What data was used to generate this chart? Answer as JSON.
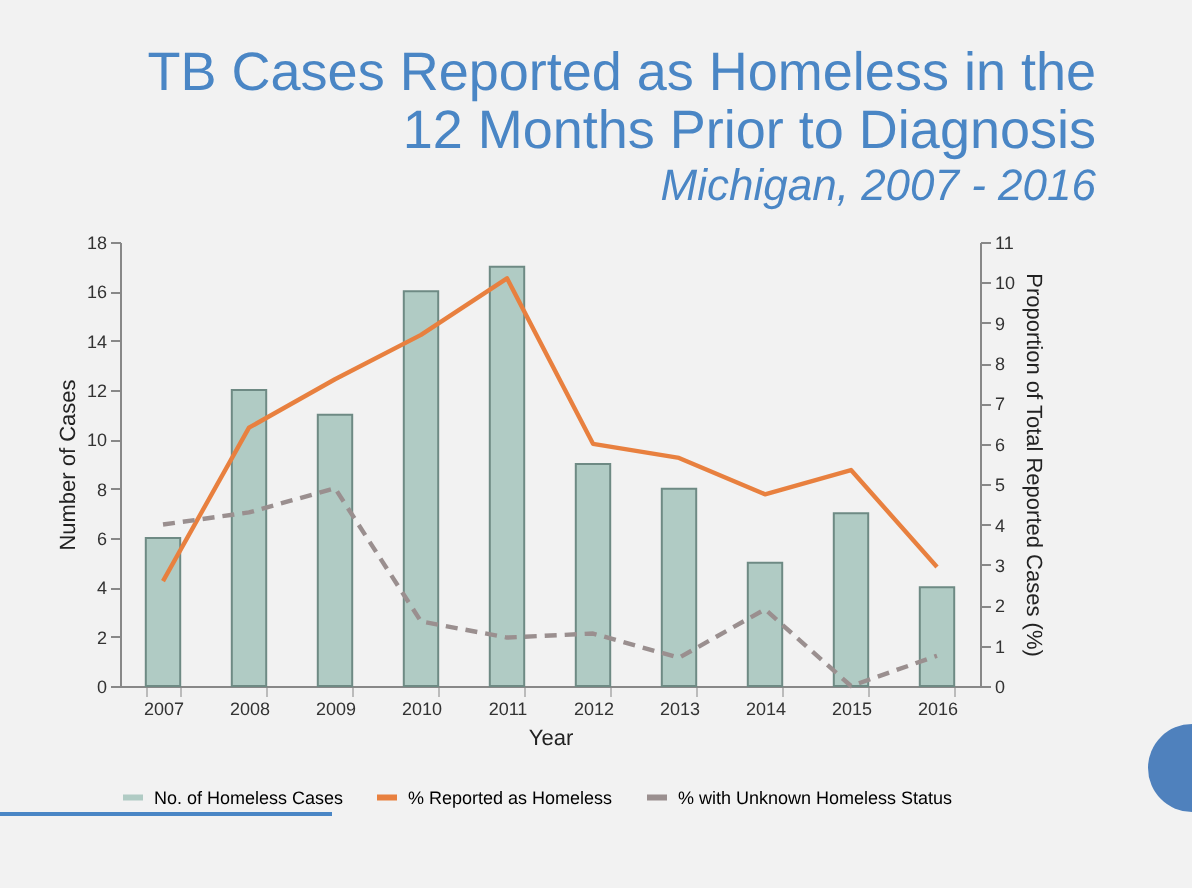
{
  "chart_data": {
    "type": "bar",
    "title": "TB Cases Reported as Homeless in the\n12 Months Prior to Diagnosis",
    "subtitle": "Michigan, 2007 - 2016",
    "xlabel": "Year",
    "ylabel": "Number of Cases",
    "y2label": "Proportion of Total Reported Cases (%)",
    "categories": [
      "2007",
      "2008",
      "2009",
      "2010",
      "2011",
      "2012",
      "2013",
      "2014",
      "2015",
      "2016"
    ],
    "series": [
      {
        "name": "No. of Homeless Cases",
        "color": "#b0cbc4",
        "values": [
          6,
          12,
          11,
          16,
          17,
          9,
          8,
          5,
          7,
          4
        ]
      },
      {
        "name": "% Reported as Homeless",
        "type": "line",
        "axis": "y2",
        "color": "#e8803f",
        "line_style": "solid",
        "values": [
          2.6,
          6.4,
          7.6,
          8.7,
          10.1,
          6.0,
          5.65,
          4.75,
          5.35,
          2.95
        ]
      },
      {
        "name": "% with Unknown Homeless Status",
        "type": "line",
        "axis": "y2",
        "color": "#9a8f8f",
        "line_style": "dashed",
        "values": [
          4.0,
          4.3,
          4.9,
          1.6,
          1.2,
          1.3,
          0.7,
          1.9,
          0,
          0.75
        ]
      }
    ],
    "ylim": [
      0,
      18
    ],
    "yticks": [
      0,
      2,
      4,
      6,
      8,
      10,
      12,
      14,
      16,
      18
    ],
    "y2lim": [
      0,
      11
    ],
    "y2ticks": [
      0,
      1,
      2,
      3,
      4,
      5,
      6,
      7,
      8,
      9,
      10,
      11
    ],
    "grid": false,
    "legend": "bottom",
    "marker": "none"
  }
}
